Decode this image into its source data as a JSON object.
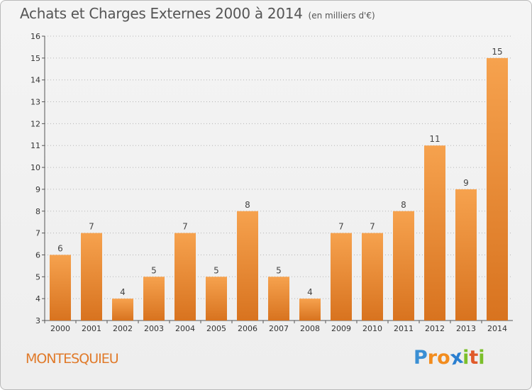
{
  "chart_data": {
    "type": "bar",
    "title": "Achats et Charges Externes 2000 à 2014",
    "subtitle": "(en milliers d'€)",
    "categories": [
      "2000",
      "2001",
      "2002",
      "2003",
      "2004",
      "2005",
      "2006",
      "2007",
      "2008",
      "2009",
      "2010",
      "2011",
      "2012",
      "2013",
      "2014"
    ],
    "values": [
      6,
      7,
      4,
      5,
      7,
      5,
      8,
      5,
      4,
      7,
      7,
      8,
      11,
      9,
      15
    ],
    "ylim": [
      3,
      16
    ],
    "yticks": [
      3,
      4,
      5,
      6,
      7,
      8,
      9,
      10,
      11,
      12,
      13,
      14,
      15,
      16
    ],
    "grid": "dotted horizontal",
    "bar_color_top": "#f6a24e",
    "bar_color_bottom": "#d8731f"
  },
  "footer": {
    "commune": "MONTESQUIEU",
    "logo": [
      "P",
      "r",
      "o",
      "x",
      "i",
      "t",
      "i"
    ],
    "logo_colors": [
      "#3a8fd4",
      "#f28c1e",
      "#f28c1e",
      "#2a7fd0",
      "#7bbf2a",
      "#e05a2a",
      "#7bbf2a"
    ]
  }
}
